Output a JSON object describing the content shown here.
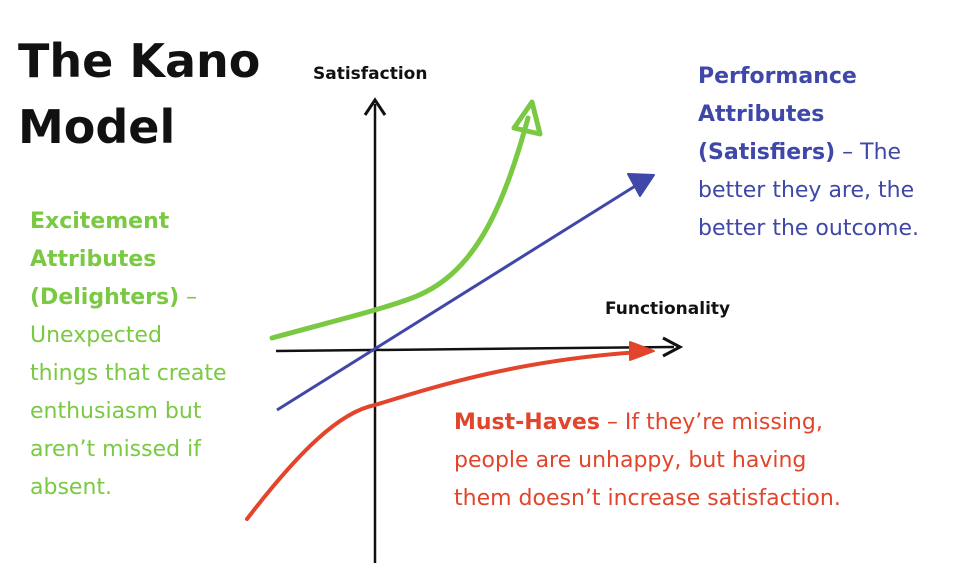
{
  "title": {
    "line1": "The Kano",
    "line2": "Model"
  },
  "axes": {
    "y_label": "Satisfaction",
    "x_label": "Functionality"
  },
  "excitement": {
    "heading_lines": [
      "Excitement",
      "Attributes",
      "(Delighters)"
    ],
    "separator": " – ",
    "description_lines": [
      "Unexpected",
      "things that create",
      "enthusiasm but",
      "aren’t missed if",
      "absent."
    ],
    "color": "#7ac943"
  },
  "performance": {
    "heading_lines": [
      "Performance",
      "Attributes",
      "(Satisfiers)"
    ],
    "separator": " – ",
    "description_first": "The",
    "description_lines": [
      "better they are, the",
      "better the outcome."
    ],
    "color": "#3f48a8"
  },
  "must_haves": {
    "heading": "Must-Haves",
    "separator": " – ",
    "description_first": "If they’re missing,",
    "description_lines": [
      "people are unhappy, but having",
      "them doesn’t increase satisfaction."
    ],
    "color": "#e2452b"
  },
  "axis_color": "#111111"
}
